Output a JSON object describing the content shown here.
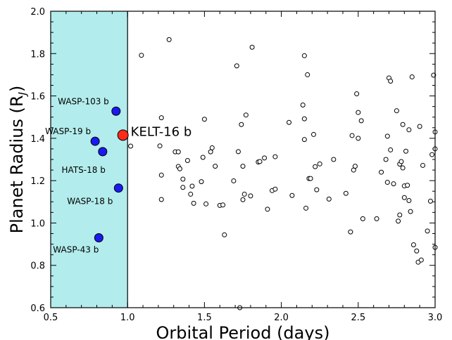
{
  "chart_data": {
    "type": "scatter",
    "xlabel": "Orbital Period (days)",
    "ylabel_main": "Planet Radius (R",
    "ylabel_sub": "J",
    "ylabel_close": ")",
    "xlim": [
      0.5,
      3.0
    ],
    "ylim": [
      0.6,
      2.0
    ],
    "x_ticks": [
      "0.5",
      "1.0",
      "1.5",
      "2.0",
      "2.5",
      "3.0"
    ],
    "y_ticks": [
      "0.6",
      "0.8",
      "1.0",
      "1.2",
      "1.4",
      "1.6",
      "1.8",
      "2.0"
    ],
    "grid": false,
    "shaded_region": {
      "x": [
        0.5,
        1.0
      ],
      "color": "#b3ecec"
    },
    "colors": {
      "highlight": "#ff2a1a",
      "named": "#1a1af0",
      "field": "#ffffff",
      "edge": "#000000"
    },
    "highlight": {
      "name": "KELT-16 b",
      "x": 0.97,
      "y": 1.415
    },
    "named_planets": [
      {
        "name": "WASP-103 b",
        "x": 0.925,
        "y": 1.528
      },
      {
        "name": "WASP-19 b",
        "x": 0.789,
        "y": 1.386
      },
      {
        "name": "HATS-18 b",
        "x": 0.838,
        "y": 1.337
      },
      {
        "name": "WASP-18 b",
        "x": 0.941,
        "y": 1.165
      },
      {
        "name": "WASP-43 b",
        "x": 0.813,
        "y": 0.93
      }
    ],
    "field_planets": [
      [
        1.02,
        1.363
      ],
      [
        1.09,
        1.792
      ],
      [
        1.21,
        1.364
      ],
      [
        1.22,
        1.497
      ],
      [
        1.22,
        1.226
      ],
      [
        1.22,
        1.111
      ],
      [
        1.27,
        1.866
      ],
      [
        1.31,
        1.336
      ],
      [
        1.33,
        1.267
      ],
      [
        1.34,
        1.256
      ],
      [
        1.33,
        1.336
      ],
      [
        1.36,
        1.207
      ],
      [
        1.36,
        1.168
      ],
      [
        1.39,
        1.295
      ],
      [
        1.41,
        1.136
      ],
      [
        1.42,
        1.174
      ],
      [
        1.43,
        1.093
      ],
      [
        1.48,
        1.195
      ],
      [
        1.49,
        1.31
      ],
      [
        1.5,
        1.49
      ],
      [
        1.51,
        1.09
      ],
      [
        1.54,
        1.336
      ],
      [
        1.55,
        1.355
      ],
      [
        1.57,
        1.268
      ],
      [
        1.6,
        1.083
      ],
      [
        1.62,
        1.085
      ],
      [
        1.63,
        0.944
      ],
      [
        1.69,
        1.199
      ],
      [
        1.71,
        1.742
      ],
      [
        1.72,
        1.337
      ],
      [
        1.73,
        0.6
      ],
      [
        1.74,
        1.465
      ],
      [
        1.75,
        1.268
      ],
      [
        1.75,
        1.11
      ],
      [
        1.76,
        1.136
      ],
      [
        1.77,
        1.51
      ],
      [
        1.8,
        1.128
      ],
      [
        1.81,
        1.83
      ],
      [
        1.85,
        1.288
      ],
      [
        1.86,
        1.29
      ],
      [
        1.89,
        1.307
      ],
      [
        1.91,
        1.065
      ],
      [
        1.94,
        1.153
      ],
      [
        1.96,
        1.313
      ],
      [
        1.96,
        1.16
      ],
      [
        2.05,
        1.475
      ],
      [
        2.07,
        1.13
      ],
      [
        2.14,
        1.557
      ],
      [
        2.15,
        1.79
      ],
      [
        2.15,
        1.492
      ],
      [
        2.15,
        1.394
      ],
      [
        2.16,
        1.07
      ],
      [
        2.17,
        1.7
      ],
      [
        2.18,
        1.21
      ],
      [
        2.19,
        1.21
      ],
      [
        2.21,
        1.418
      ],
      [
        2.22,
        1.266
      ],
      [
        2.23,
        1.157
      ],
      [
        2.25,
        1.279
      ],
      [
        2.31,
        1.113
      ],
      [
        2.34,
        1.3
      ],
      [
        2.42,
        1.14
      ],
      [
        2.45,
        0.958
      ],
      [
        2.46,
        1.413
      ],
      [
        2.47,
        1.25
      ],
      [
        2.48,
        1.268
      ],
      [
        2.49,
        1.61
      ],
      [
        2.5,
        1.522
      ],
      [
        2.5,
        1.4
      ],
      [
        2.52,
        1.483
      ],
      [
        2.53,
        1.02
      ],
      [
        2.62,
        1.02
      ],
      [
        2.65,
        1.24
      ],
      [
        2.68,
        1.3
      ],
      [
        2.69,
        1.192
      ],
      [
        2.69,
        1.41
      ],
      [
        2.7,
        1.685
      ],
      [
        2.71,
        1.67
      ],
      [
        2.71,
        1.345
      ],
      [
        2.73,
        1.185
      ],
      [
        2.75,
        1.53
      ],
      [
        2.76,
        1.009
      ],
      [
        2.77,
        1.278
      ],
      [
        2.77,
        1.038
      ],
      [
        2.78,
        1.29
      ],
      [
        2.79,
        1.465
      ],
      [
        2.79,
        1.26
      ],
      [
        2.8,
        1.175
      ],
      [
        2.8,
        1.12
      ],
      [
        2.81,
        1.339
      ],
      [
        2.82,
        1.178
      ],
      [
        2.83,
        1.106
      ],
      [
        2.83,
        1.44
      ],
      [
        2.84,
        1.054
      ],
      [
        2.85,
        1.69
      ],
      [
        2.86,
        0.897
      ],
      [
        2.88,
        0.868
      ],
      [
        2.89,
        0.815
      ],
      [
        2.9,
        1.456
      ],
      [
        2.91,
        0.825
      ],
      [
        2.92,
        1.272
      ],
      [
        2.95,
        0.962
      ],
      [
        2.97,
        1.103
      ],
      [
        2.98,
        1.323
      ],
      [
        2.99,
        1.698
      ],
      [
        3.0,
        1.43
      ],
      [
        3.0,
        1.35
      ],
      [
        3.0,
        0.885
      ]
    ]
  }
}
